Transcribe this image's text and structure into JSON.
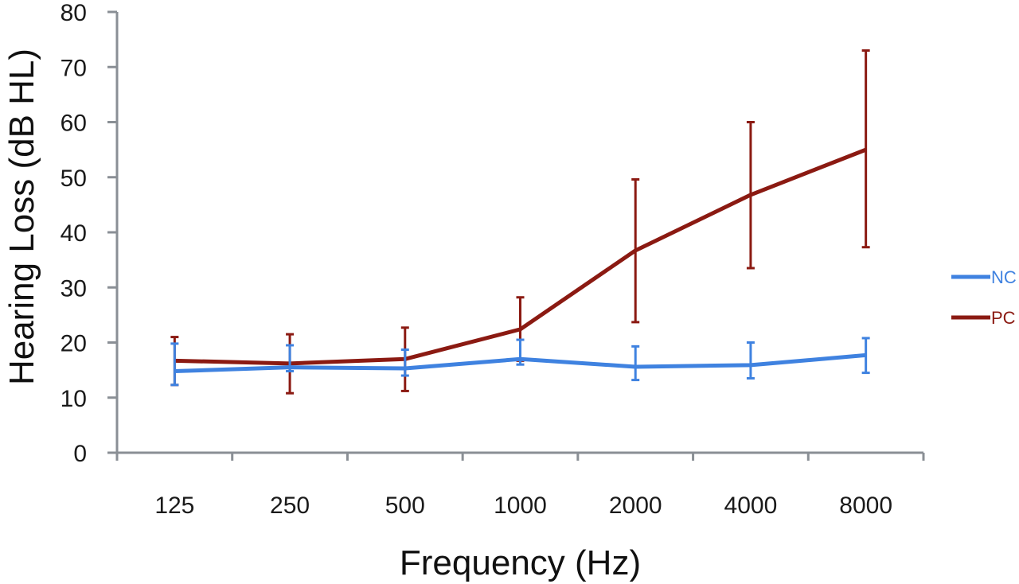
{
  "chart_data": {
    "type": "line",
    "title": "",
    "xlabel": "Frequency (Hz)",
    "ylabel": "Hearing  Loss  (dB HL)",
    "categories": [
      "125",
      "250",
      "500",
      "1000",
      "2000",
      "4000",
      "8000"
    ],
    "ylim": [
      0,
      80
    ],
    "yticks": [
      0,
      10,
      20,
      30,
      40,
      50,
      60,
      70,
      80
    ],
    "grid": false,
    "legend_position": "right",
    "series": [
      {
        "name": "NC",
        "color": "#3f82e0",
        "values": [
          14.8,
          15.5,
          15.3,
          17.0,
          15.6,
          15.9,
          17.7
        ],
        "error_lower": [
          12.3,
          14.8,
          14.0,
          16.0,
          13.2,
          13.5,
          14.5
        ],
        "error_upper": [
          19.8,
          19.5,
          18.7,
          20.5,
          19.3,
          20.0,
          20.8
        ]
      },
      {
        "name": "PC",
        "color": "#8b1a12",
        "values": [
          16.7,
          16.2,
          17.0,
          22.4,
          36.7,
          46.8,
          55.0
        ],
        "error_lower": [
          12.3,
          10.8,
          11.2,
          16.7,
          23.7,
          33.5,
          37.3
        ],
        "error_upper": [
          21.0,
          21.5,
          22.7,
          28.2,
          49.6,
          60.0,
          73.0
        ]
      }
    ]
  }
}
